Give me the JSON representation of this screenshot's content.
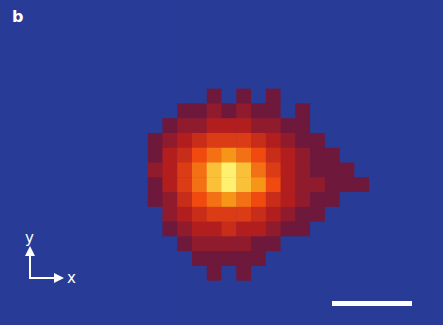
{
  "chart_data": {
    "type": "heatmap",
    "panel_label": "b",
    "axis_labels": {
      "x": "x",
      "y": "y"
    },
    "tick_labels": false,
    "cells": [
      [
        0,
        0,
        0,
        0,
        0,
        0,
        0,
        0,
        0,
        0,
        0,
        0,
        0,
        0,
        0,
        0,
        0,
        0,
        0,
        0,
        0,
        0,
        0,
        0,
        0,
        0,
        0,
        0,
        0,
        0
      ],
      [
        0,
        0,
        0,
        0,
        0,
        0,
        0,
        0,
        0,
        0,
        0,
        0,
        0,
        0,
        0,
        0,
        0,
        0,
        0,
        0,
        0,
        0,
        0,
        0,
        0,
        0,
        0,
        0,
        0,
        0
      ],
      [
        0,
        0,
        0,
        0,
        0,
        0,
        0,
        0,
        0,
        0,
        0,
        0,
        0,
        0,
        0,
        0,
        0,
        0,
        0,
        0,
        0,
        0,
        0,
        0,
        0,
        0,
        0,
        0,
        0,
        0
      ],
      [
        0,
        0,
        0,
        0,
        0,
        0,
        0,
        0,
        0,
        0,
        0,
        0,
        0,
        0,
        0,
        0,
        0,
        0,
        0,
        0,
        0,
        0,
        0,
        0,
        0,
        0,
        0,
        0,
        0,
        0
      ],
      [
        0,
        0,
        0,
        0,
        0,
        0,
        0,
        0,
        0,
        0,
        0,
        0,
        0,
        0,
        0,
        0,
        0,
        0,
        0,
        0,
        0,
        0,
        0,
        0,
        0,
        0,
        0,
        0,
        0,
        0
      ],
      [
        0,
        0,
        0,
        0,
        0,
        0,
        0,
        0,
        0,
        0,
        0,
        0,
        0,
        0,
        0,
        0,
        0,
        0,
        0,
        0,
        0,
        0,
        0,
        0,
        0,
        0,
        0,
        0,
        0,
        0
      ],
      [
        0,
        0,
        0,
        0,
        0,
        0,
        0,
        0,
        0,
        0,
        0,
        0,
        0,
        0,
        1,
        0,
        1,
        0,
        1,
        0,
        0,
        0,
        0,
        0,
        0,
        0,
        0,
        0,
        0,
        0
      ],
      [
        0,
        0,
        0,
        0,
        0,
        0,
        0,
        0,
        0,
        0,
        0,
        0,
        1,
        1,
        2,
        1,
        2,
        1,
        1,
        0,
        1,
        0,
        0,
        0,
        0,
        0,
        0,
        0,
        0,
        0
      ],
      [
        0,
        0,
        0,
        0,
        0,
        0,
        0,
        0,
        0,
        0,
        0,
        1,
        2,
        2,
        3,
        3,
        3,
        2,
        2,
        1,
        1,
        0,
        0,
        0,
        0,
        0,
        0,
        0,
        0,
        0
      ],
      [
        0,
        0,
        0,
        0,
        0,
        0,
        0,
        0,
        0,
        0,
        1,
        2,
        3,
        4,
        5,
        5,
        5,
        4,
        3,
        2,
        1,
        1,
        0,
        0,
        0,
        0,
        0,
        0,
        0,
        0
      ],
      [
        0,
        0,
        0,
        0,
        0,
        0,
        0,
        0,
        0,
        0,
        1,
        3,
        4,
        6,
        7,
        8,
        7,
        6,
        4,
        3,
        2,
        1,
        1,
        0,
        0,
        0,
        0,
        0,
        0,
        0
      ],
      [
        0,
        0,
        0,
        0,
        0,
        0,
        0,
        0,
        0,
        0,
        2,
        3,
        5,
        7,
        9,
        10,
        9,
        7,
        5,
        3,
        2,
        1,
        1,
        1,
        0,
        0,
        0,
        0,
        0,
        0
      ],
      [
        0,
        0,
        0,
        0,
        0,
        0,
        0,
        0,
        0,
        0,
        1,
        3,
        5,
        7,
        9,
        10,
        9,
        8,
        6,
        3,
        2,
        2,
        1,
        1,
        1,
        0,
        0,
        0,
        0,
        0
      ],
      [
        0,
        0,
        0,
        0,
        0,
        0,
        0,
        0,
        0,
        0,
        1,
        2,
        4,
        6,
        7,
        8,
        7,
        6,
        4,
        3,
        2,
        1,
        1,
        0,
        0,
        0,
        0,
        0,
        0,
        0
      ],
      [
        0,
        0,
        0,
        0,
        0,
        0,
        0,
        0,
        0,
        0,
        0,
        2,
        3,
        4,
        5,
        5,
        5,
        4,
        3,
        2,
        1,
        1,
        0,
        0,
        0,
        0,
        0,
        0,
        0,
        0
      ],
      [
        0,
        0,
        0,
        0,
        0,
        0,
        0,
        0,
        0,
        0,
        0,
        1,
        2,
        3,
        3,
        4,
        3,
        3,
        2,
        1,
        1,
        0,
        0,
        0,
        0,
        0,
        0,
        0,
        0,
        0
      ],
      [
        0,
        0,
        0,
        0,
        0,
        0,
        0,
        0,
        0,
        0,
        0,
        0,
        1,
        2,
        2,
        2,
        2,
        1,
        1,
        0,
        0,
        0,
        0,
        0,
        0,
        0,
        0,
        0,
        0,
        0
      ],
      [
        0,
        0,
        0,
        0,
        0,
        0,
        0,
        0,
        0,
        0,
        0,
        0,
        0,
        1,
        1,
        1,
        1,
        1,
        0,
        0,
        0,
        0,
        0,
        0,
        0,
        0,
        0,
        0,
        0,
        0
      ],
      [
        0,
        0,
        0,
        0,
        0,
        0,
        0,
        0,
        0,
        0,
        0,
        0,
        0,
        0,
        1,
        0,
        1,
        0,
        0,
        0,
        0,
        0,
        0,
        0,
        0,
        0,
        0,
        0,
        0,
        0
      ],
      [
        0,
        0,
        0,
        0,
        0,
        0,
        0,
        0,
        0,
        0,
        0,
        0,
        0,
        0,
        0,
        0,
        0,
        0,
        0,
        0,
        0,
        0,
        0,
        0,
        0,
        0,
        0,
        0,
        0,
        0
      ],
      [
        0,
        0,
        0,
        0,
        0,
        0,
        0,
        0,
        0,
        0,
        0,
        0,
        0,
        0,
        0,
        0,
        0,
        0,
        0,
        0,
        0,
        0,
        0,
        0,
        0,
        0,
        0,
        0,
        0,
        0
      ],
      [
        0,
        0,
        0,
        0,
        0,
        0,
        0,
        0,
        0,
        0,
        0,
        0,
        0,
        0,
        0,
        0,
        0,
        0,
        0,
        0,
        0,
        0,
        0,
        0,
        0,
        0,
        0,
        0,
        0,
        0
      ]
    ]
  }
}
